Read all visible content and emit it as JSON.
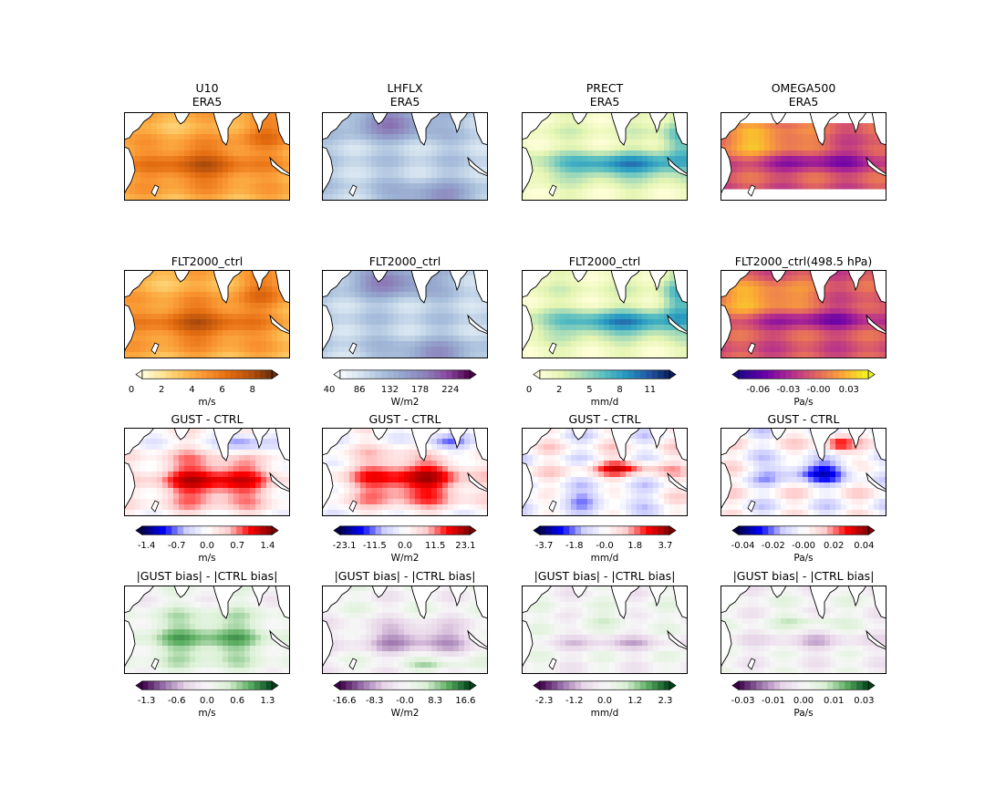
{
  "chart_data": {
    "type": "heatmap",
    "columns": [
      {
        "variable": "U10",
        "unit": "m/s"
      },
      {
        "variable": "LHFLX",
        "unit": "W/m2"
      },
      {
        "variable": "PRECT",
        "unit": "mm/d"
      },
      {
        "variable": "OMEGA500",
        "unit": "Pa/s"
      }
    ],
    "rows": [
      {
        "titles": [
          "U10\nERA5",
          "LHFLX\nERA5",
          "PRECT\nERA5",
          "OMEGA500\nERA5"
        ]
      },
      {
        "titles": [
          "FLT2000_ctrl",
          "FLT2000_ctrl",
          "FLT2000_ctrl",
          "FLT2000_ctrl(498.5 hPa)"
        ]
      },
      {
        "titles": [
          "GUST - CTRL",
          "GUST - CTRL",
          "GUST - CTRL",
          "GUST - CTRL"
        ]
      },
      {
        "titles": [
          "|GUST bias| - |CTRL bias|",
          "|GUST bias| - |CTRL bias|",
          "|GUST bias| - |CTRL bias|",
          "|GUST bias| - |CTRL bias|"
        ]
      }
    ],
    "colorbars": [
      [
        {
          "colormap": "oranges",
          "colors": [
            "#fffde0",
            "#fee391",
            "#fdb94f",
            "#f8912e",
            "#e36c10",
            "#b9520c",
            "#6b2d08"
          ],
          "ticks": [
            "0",
            "2",
            "4",
            "6",
            "8"
          ],
          "tick_pos": [
            0,
            0.2,
            0.4,
            0.6,
            0.8
          ],
          "label": "m/s"
        },
        {
          "colormap": "bupu",
          "colors": [
            "#f7fcfd",
            "#d4e2ef",
            "#a9c0dc",
            "#93a2cb",
            "#8c7fb9",
            "#88469f",
            "#4d004b"
          ],
          "ticks": [
            "40",
            "86",
            "132",
            "178",
            "224"
          ],
          "tick_pos": [
            0,
            0.2,
            0.4,
            0.6,
            0.8
          ],
          "label": "W/m2"
        },
        {
          "colormap": "ylgnbu",
          "colors": [
            "#ffffd9",
            "#e5f5b3",
            "#a5dbb8",
            "#56bdc1",
            "#2597c1",
            "#2359a5",
            "#091f5c"
          ],
          "ticks": [
            "0",
            "2",
            "5",
            "8",
            "11"
          ],
          "tick_pos": [
            0,
            0.2,
            0.4,
            0.6,
            0.8
          ],
          "label": "mm/d"
        },
        {
          "colormap": "plasma",
          "colors": [
            "#1c0789",
            "#6a00a8",
            "#b12a90",
            "#e16462",
            "#fca636",
            "#f0f921"
          ],
          "ticks": [
            "-0.06",
            "-0.03",
            "-0.00",
            "0.03"
          ],
          "tick_pos": [
            0.2,
            0.4,
            0.6,
            0.8
          ],
          "label": "Pa/s"
        }
      ],
      [
        {
          "colormap": "seismic",
          "colors": [
            "#00004c",
            "#0000ff",
            "#ccccff",
            "#ffffff",
            "#ffcccc",
            "#ff0000",
            "#7f0000"
          ],
          "ticks": [
            "-1.4",
            "-0.7",
            "0.0",
            "0.7",
            "1.4"
          ],
          "tick_pos": [
            0.1,
            0.3,
            0.5,
            0.7,
            0.9
          ],
          "label": "m/s"
        },
        {
          "colormap": "seismic",
          "colors": [
            "#00004c",
            "#0000ff",
            "#ccccff",
            "#ffffff",
            "#ffcccc",
            "#ff0000",
            "#7f0000"
          ],
          "ticks": [
            "-23.1",
            "-11.5",
            "0.0",
            "11.5",
            "23.1"
          ],
          "tick_pos": [
            0.1,
            0.3,
            0.5,
            0.7,
            0.9
          ],
          "label": "W/m2"
        },
        {
          "colormap": "seismic",
          "colors": [
            "#00004c",
            "#0000ff",
            "#ccccff",
            "#ffffff",
            "#ffcccc",
            "#ff0000",
            "#7f0000"
          ],
          "ticks": [
            "-3.7",
            "-1.8",
            "-0.0",
            "1.8",
            "3.7"
          ],
          "tick_pos": [
            0.1,
            0.3,
            0.5,
            0.7,
            0.9
          ],
          "label": "mm/d"
        },
        {
          "colormap": "seismic",
          "colors": [
            "#00004c",
            "#0000ff",
            "#ccccff",
            "#ffffff",
            "#ffcccc",
            "#ff0000",
            "#7f0000"
          ],
          "ticks": [
            "-0.04",
            "-0.02",
            "-0.00",
            "0.02",
            "0.04"
          ],
          "tick_pos": [
            0.1,
            0.3,
            0.5,
            0.7,
            0.9
          ],
          "label": "Pa/s"
        }
      ],
      [
        {
          "colormap": "prgn",
          "colors": [
            "#40004b",
            "#9970ab",
            "#e7d4e8",
            "#f7f7f7",
            "#d9f0d3",
            "#5aae61",
            "#00441b"
          ],
          "ticks": [
            "-1.3",
            "-0.6",
            "0.0",
            "0.6",
            "1.3"
          ],
          "tick_pos": [
            0.1,
            0.3,
            0.5,
            0.7,
            0.9
          ],
          "label": "m/s"
        },
        {
          "colormap": "prgn",
          "colors": [
            "#40004b",
            "#9970ab",
            "#e7d4e8",
            "#f7f7f7",
            "#d9f0d3",
            "#5aae61",
            "#00441b"
          ],
          "ticks": [
            "-16.6",
            "-8.3",
            "-0.0",
            "8.3",
            "16.6"
          ],
          "tick_pos": [
            0.1,
            0.3,
            0.5,
            0.7,
            0.9
          ],
          "label": "W/m2"
        },
        {
          "colormap": "prgn",
          "colors": [
            "#40004b",
            "#9970ab",
            "#e7d4e8",
            "#f7f7f7",
            "#d9f0d3",
            "#5aae61",
            "#00441b"
          ],
          "ticks": [
            "-2.3",
            "-1.2",
            "0.0",
            "1.2",
            "2.3"
          ],
          "tick_pos": [
            0.1,
            0.3,
            0.5,
            0.7,
            0.9
          ],
          "label": "mm/d"
        },
        {
          "colormap": "prgn",
          "colors": [
            "#40004b",
            "#9970ab",
            "#e7d4e8",
            "#f7f7f7",
            "#d9f0d3",
            "#5aae61",
            "#00441b"
          ],
          "ticks": [
            "-0.03",
            "-0.01",
            "0.00",
            "0.01",
            "0.03"
          ],
          "tick_pos": [
            0.1,
            0.3,
            0.5,
            0.7,
            0.9
          ],
          "label": "Pa/s"
        }
      ]
    ],
    "grid": false,
    "land_color": "#ffffff",
    "coastline_color": "#000000"
  }
}
